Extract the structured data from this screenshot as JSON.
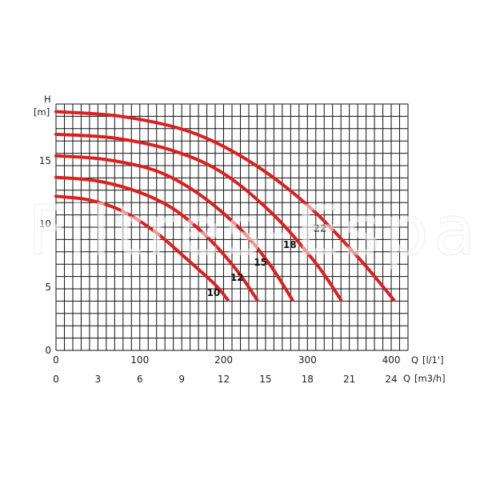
{
  "watermark": "Filtres-Espa",
  "chart_data": {
    "type": "line",
    "title": "",
    "ylabel": "H",
    "yunit": "[m]",
    "xlabel": "Q",
    "xunit": "[l/1']",
    "x2label": "Q",
    "x2unit": "[m3/h]",
    "xlim": [
      0,
      420
    ],
    "ylim": [
      0,
      19.5
    ],
    "x_ticks": [
      0,
      100,
      200,
      300,
      400
    ],
    "x2_ticks": [
      0,
      3,
      6,
      9,
      12,
      15,
      18,
      21,
      24
    ],
    "y_ticks": [
      0,
      5,
      10,
      15
    ],
    "grid": true,
    "series": [
      {
        "name": "10",
        "x": [
          0,
          40,
          80,
          120,
          160,
          190,
          205
        ],
        "y": [
          12.2,
          11.9,
          11.0,
          9.3,
          7.0,
          5.2,
          4.0
        ]
      },
      {
        "name": "12",
        "x": [
          0,
          50,
          100,
          140,
          180,
          215,
          240
        ],
        "y": [
          13.7,
          13.4,
          12.5,
          11.2,
          9.0,
          6.4,
          4.0
        ]
      },
      {
        "name": "15",
        "x": [
          0,
          60,
          120,
          170,
          220,
          255,
          282
        ],
        "y": [
          15.4,
          15.1,
          14.2,
          12.4,
          9.6,
          6.8,
          4.0
        ]
      },
      {
        "name": "18",
        "x": [
          0,
          70,
          140,
          200,
          260,
          310,
          340
        ],
        "y": [
          17.1,
          16.8,
          15.8,
          14.0,
          10.7,
          6.9,
          4.0
        ]
      },
      {
        "name": "22",
        "x": [
          0,
          80,
          160,
          230,
          300,
          360,
          403
        ],
        "y": [
          18.9,
          18.5,
          17.3,
          15.0,
          11.5,
          7.4,
          4.0
        ]
      }
    ],
    "curve_labels": [
      {
        "text": "10",
        "x": 180,
        "y": 4.3
      },
      {
        "text": "12",
        "x": 208,
        "y": 5.5
      },
      {
        "text": "15",
        "x": 236,
        "y": 6.7
      },
      {
        "text": "18",
        "x": 271,
        "y": 8.1
      },
      {
        "text": "22",
        "x": 307,
        "y": 9.4
      }
    ],
    "line_color": "#dd1f1f"
  }
}
